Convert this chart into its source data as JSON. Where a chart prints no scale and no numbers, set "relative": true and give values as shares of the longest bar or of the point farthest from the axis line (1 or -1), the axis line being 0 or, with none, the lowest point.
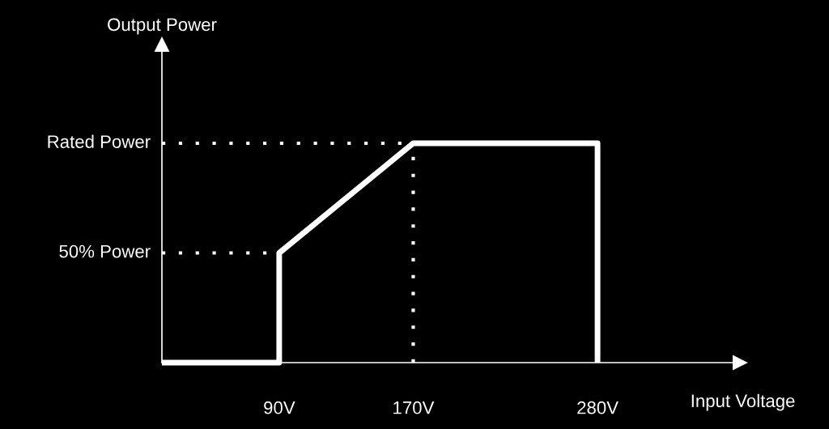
{
  "chart_data": {
    "type": "line",
    "xlabel": "Input Voltage",
    "annotations": [
      "Output Power"
    ],
    "relative": true,
    "series": [
      {
        "color": "#ffffff",
        "x": [
          20,
          90,
          90,
          170,
          280,
          280
        ],
        "values": [
          0,
          0,
          0.5,
          1,
          1,
          0
        ]
      }
    ],
    "xlim": [
      20,
      365
    ],
    "xticks": [
      {
        "value": 90,
        "label": "90V"
      },
      {
        "value": 170,
        "label": "170V"
      },
      {
        "value": 280,
        "label": "280V"
      }
    ],
    "ref_lines": [
      {
        "axis": "y",
        "value": 0.5,
        "label": "50% Power",
        "color": "#ffffff",
        "line_style": "dotted"
      },
      {
        "axis": "y",
        "value": 1,
        "label": "Rated Power",
        "color": "#ffffff",
        "line_style": "dotted"
      },
      {
        "axis": "x",
        "value": 170,
        "color": "#ffffff",
        "line_style": "dotted"
      }
    ],
    "line_style": "solid"
  }
}
